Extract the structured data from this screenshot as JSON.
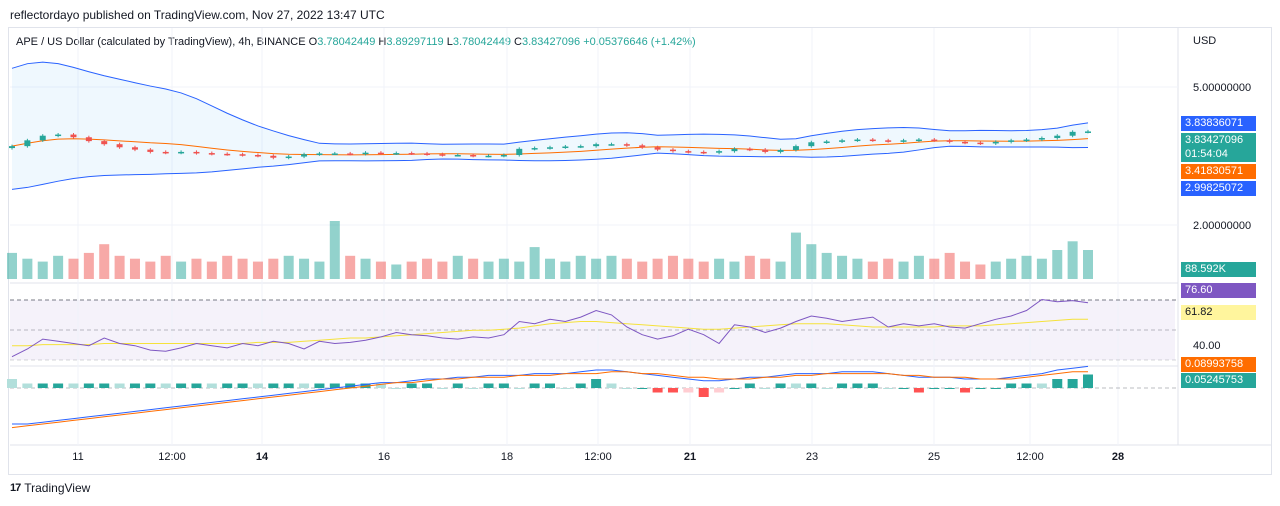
{
  "publisher_line": "reflectordayo published on TradingView.com, Nov 27, 2022 13:47 UTC",
  "legend": {
    "symbol": "APE / US Dollar (calculated by TradingView), 4h, BINANCE",
    "open_label": "O",
    "open": "3.78042449",
    "high_label": "H",
    "high": "3.89297119",
    "low_label": "L",
    "low": "3.78042449",
    "close_label": "C",
    "close": "3.83427096",
    "change": "+0.05376646 (+1.42%)"
  },
  "currency": "USD",
  "footer": {
    "logo_text": "TradingView"
  },
  "colors": {
    "up": "#26a69a",
    "down": "#ef5350",
    "bb": "#2962ff",
    "bb_mid": "#ff6d00",
    "rsi": "#7e57c2",
    "rsi_ma": "#f5e23b",
    "macd": "#2962ff",
    "signal": "#ff6d00"
  },
  "price_tags": [
    {
      "value": "3.83836071",
      "color": "#2962ff"
    },
    {
      "value": "3.83427096",
      "color": "#26a69a"
    },
    {
      "value": "3.41830571",
      "color": "#ff6d00"
    },
    {
      "value": "2.99825072",
      "color": "#2962ff"
    },
    {
      "value": "88.592K",
      "color": "#26a69a"
    },
    {
      "value": "76.60",
      "color": "#7e57c2"
    },
    {
      "value": "61.82",
      "color": "#fff59d"
    },
    {
      "value": "0.08993758",
      "color": "#ff6d00"
    },
    {
      "value": "0.05245753",
      "color": "#26a69a"
    }
  ],
  "countdown": "01:54:04",
  "chart_data": [
    {
      "type": "candlestick",
      "title": "APE / US Dollar (calculated by TradingView), 4h, BINANCE",
      "y_ticks": [
        "5.00000000",
        "2.00000000"
      ],
      "x_ticks": [
        "11",
        "12:00",
        "14",
        "16",
        "18",
        "12:00",
        "21",
        "23",
        "25",
        "12:00",
        "28"
      ],
      "close_path": [
        3.45,
        3.6,
        3.72,
        3.75,
        3.68,
        3.58,
        3.5,
        3.42,
        3.36,
        3.3,
        3.28,
        3.3,
        3.27,
        3.25,
        3.24,
        3.22,
        3.2,
        3.15,
        3.18,
        3.24,
        3.26,
        3.26,
        3.25,
        3.28,
        3.26,
        3.27,
        3.26,
        3.24,
        3.22,
        3.22,
        3.2,
        3.2,
        3.22,
        3.38,
        3.4,
        3.42,
        3.44,
        3.45,
        3.5,
        3.5,
        3.47,
        3.42,
        3.36,
        3.32,
        3.3,
        3.28,
        3.32,
        3.38,
        3.36,
        3.3,
        3.35,
        3.45,
        3.55,
        3.57,
        3.6,
        3.62,
        3.6,
        3.58,
        3.6,
        3.62,
        3.6,
        3.56,
        3.54,
        3.52,
        3.56,
        3.6,
        3.62,
        3.66,
        3.72,
        3.82,
        3.83
      ]
    },
    {
      "type": "bar",
      "title": "Volume",
      "last_value": "88.592K",
      "values": [
        45,
        35,
        30,
        40,
        35,
        45,
        60,
        40,
        35,
        30,
        40,
        30,
        35,
        30,
        40,
        35,
        30,
        35,
        40,
        35,
        30,
        100,
        40,
        35,
        30,
        25,
        30,
        35,
        30,
        40,
        35,
        30,
        35,
        30,
        55,
        35,
        30,
        40,
        35,
        40,
        35,
        30,
        35,
        40,
        35,
        30,
        35,
        30,
        40,
        35,
        30,
        80,
        60,
        45,
        40,
        35,
        30,
        35,
        30,
        40,
        35,
        45,
        30,
        25,
        30,
        35,
        40,
        35,
        50,
        65,
        50
      ]
    },
    {
      "type": "line",
      "title": "RSI",
      "y_ticks": [
        "40.00"
      ],
      "series": [
        {
          "values": [
            28,
            35,
            44,
            42,
            40,
            38,
            45,
            40,
            38,
            34,
            33,
            36,
            40,
            38,
            36,
            40,
            38,
            42,
            40,
            35,
            42,
            40,
            41,
            43,
            46,
            50,
            48,
            47,
            45,
            44,
            46,
            45,
            48,
            60,
            58,
            62,
            60,
            64,
            70,
            66,
            55,
            48,
            44,
            47,
            53,
            48,
            40,
            57,
            55,
            50,
            54,
            60,
            65,
            63,
            60,
            62,
            64,
            55,
            58,
            56,
            58,
            55,
            54,
            58,
            62,
            65,
            70,
            80,
            78,
            79,
            77
          ]
        },
        {
          "values": [
            38,
            38,
            39,
            39,
            39,
            39,
            40,
            40,
            40,
            40,
            40,
            40,
            40,
            40,
            40,
            40,
            41,
            41,
            41,
            42,
            43,
            44,
            45,
            45,
            46,
            47,
            48,
            49,
            50,
            51,
            52,
            52,
            53,
            54,
            56,
            58,
            59,
            60,
            60,
            59,
            58,
            57,
            56,
            55,
            54,
            53,
            53,
            54,
            55,
            56,
            57,
            58,
            58,
            58,
            57,
            56,
            55,
            55,
            55,
            55,
            55,
            56,
            56,
            56,
            57,
            58,
            59,
            60,
            61,
            62,
            62
          ]
        }
      ]
    },
    {
      "type": "bar",
      "title": "MACD",
      "series": [
        {
          "values": [
            -0.2,
            -0.2,
            -0.19,
            -0.18,
            -0.17,
            -0.16,
            -0.15,
            -0.14,
            -0.13,
            -0.12,
            -0.11,
            -0.1,
            -0.09,
            -0.08,
            -0.07,
            -0.06,
            -0.05,
            -0.04,
            -0.03,
            -0.02,
            -0.01,
            0.0,
            0.01,
            0.02,
            0.03,
            0.03,
            0.04,
            0.05,
            0.05,
            0.06,
            0.06,
            0.07,
            0.07,
            0.07,
            0.08,
            0.08,
            0.08,
            0.09,
            0.1,
            0.1,
            0.09,
            0.08,
            0.07,
            0.06,
            0.05,
            0.04,
            0.04,
            0.05,
            0.06,
            0.06,
            0.07,
            0.08,
            0.08,
            0.08,
            0.09,
            0.09,
            0.09,
            0.08,
            0.07,
            0.06,
            0.06,
            0.06,
            0.05,
            0.05,
            0.05,
            0.06,
            0.07,
            0.08,
            0.1,
            0.11,
            0.12
          ]
        },
        {
          "values": [
            -0.22,
            -0.21,
            -0.2,
            -0.19,
            -0.18,
            -0.17,
            -0.16,
            -0.15,
            -0.14,
            -0.13,
            -0.12,
            -0.11,
            -0.1,
            -0.09,
            -0.08,
            -0.07,
            -0.06,
            -0.05,
            -0.04,
            -0.03,
            -0.02,
            -0.01,
            0.0,
            0.01,
            0.02,
            0.03,
            0.03,
            0.04,
            0.05,
            0.05,
            0.06,
            0.06,
            0.06,
            0.07,
            0.07,
            0.07,
            0.08,
            0.08,
            0.08,
            0.09,
            0.09,
            0.08,
            0.08,
            0.07,
            0.06,
            0.06,
            0.05,
            0.05,
            0.05,
            0.06,
            0.06,
            0.07,
            0.07,
            0.08,
            0.08,
            0.08,
            0.08,
            0.08,
            0.07,
            0.07,
            0.06,
            0.06,
            0.06,
            0.05,
            0.05,
            0.05,
            0.06,
            0.07,
            0.08,
            0.09,
            0.09
          ]
        }
      ]
    }
  ]
}
